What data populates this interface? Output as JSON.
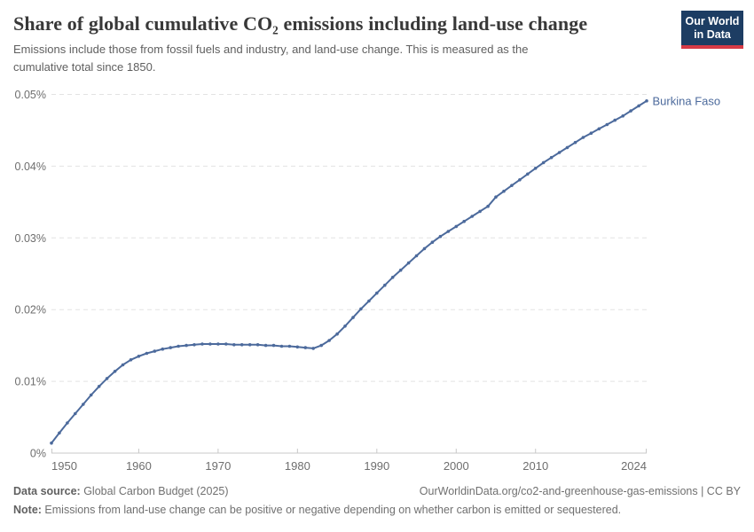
{
  "header": {
    "title": "Share of global cumulative CO₂ emissions including land-use change",
    "subtitle": "Emissions include those from fossil fuels and industry, and land-use change. This is measured as the\ncumulative total since 1850.",
    "logo_line1": "Our World",
    "logo_line2": "in Data"
  },
  "chart_data": {
    "type": "line",
    "title": "Share of global cumulative CO₂ emissions including land-use change",
    "entity_label": "Burkina Faso",
    "xlabel": "",
    "ylabel": "",
    "xlim": [
      1949,
      2024
    ],
    "ylim": [
      0,
      0.05
    ],
    "grid": true,
    "legend_position": "end-of-line",
    "x_ticks": [
      1950,
      1960,
      1970,
      1980,
      1990,
      2000,
      2010,
      2024
    ],
    "y_ticks": [
      0,
      0.01,
      0.02,
      0.03,
      0.04,
      0.05
    ],
    "y_tick_labels": [
      "0%",
      "0.01%",
      "0.02%",
      "0.03%",
      "0.04%",
      "0.05%"
    ],
    "x": [
      1949,
      1950,
      1951,
      1952,
      1953,
      1954,
      1955,
      1956,
      1957,
      1958,
      1959,
      1960,
      1961,
      1962,
      1963,
      1964,
      1965,
      1966,
      1967,
      1968,
      1969,
      1970,
      1971,
      1972,
      1973,
      1974,
      1975,
      1976,
      1977,
      1978,
      1979,
      1980,
      1981,
      1982,
      1983,
      1984,
      1985,
      1986,
      1987,
      1988,
      1989,
      1990,
      1991,
      1992,
      1993,
      1994,
      1995,
      1996,
      1997,
      1998,
      1999,
      2000,
      2001,
      2002,
      2003,
      2004,
      2005,
      2006,
      2007,
      2008,
      2009,
      2010,
      2011,
      2012,
      2013,
      2014,
      2015,
      2016,
      2017,
      2018,
      2019,
      2020,
      2021,
      2022,
      2023,
      2024
    ],
    "series": [
      {
        "name": "Burkina Faso",
        "unit": "%",
        "values": [
          0.0014,
          0.0028,
          0.0042,
          0.0055,
          0.0068,
          0.0081,
          0.0093,
          0.0104,
          0.0114,
          0.0123,
          0.013,
          0.0135,
          0.0139,
          0.0142,
          0.0145,
          0.0147,
          0.0149,
          0.015,
          0.0151,
          0.0152,
          0.0152,
          0.0152,
          0.0152,
          0.0151,
          0.0151,
          0.0151,
          0.0151,
          0.015,
          0.015,
          0.0149,
          0.0149,
          0.0148,
          0.0147,
          0.0146,
          0.015,
          0.0157,
          0.0166,
          0.0177,
          0.0189,
          0.0201,
          0.0212,
          0.0223,
          0.0234,
          0.0245,
          0.0255,
          0.0265,
          0.0275,
          0.0285,
          0.0294,
          0.0302,
          0.0309,
          0.0316,
          0.0323,
          0.033,
          0.0337,
          0.0344,
          0.0357,
          0.0365,
          0.0373,
          0.0381,
          0.0389,
          0.0397,
          0.0405,
          0.0412,
          0.0419,
          0.0426,
          0.0433,
          0.044,
          0.0446,
          0.0452,
          0.0458,
          0.0464,
          0.047,
          0.0477,
          0.0484,
          0.0491
        ]
      }
    ]
  },
  "styles": {
    "line_color": "#4c6a9c",
    "entity_label_color": "#4c6a9c",
    "grid_color": "#e3e3e3",
    "axis_color": "#c8c8c8",
    "tick_label_color": "#6e6e6e",
    "logo_navy": "#1d3d63",
    "logo_red": "#d73a46"
  },
  "footer": {
    "source_label": "Data source:",
    "source_value": " Global Carbon Budget (2025)",
    "link": "OurWorldinData.org/co2-and-greenhouse-gas-emissions | CC BY",
    "note_label": "Note:",
    "note_text": " Emissions from land-use change can be positive or negative depending on whether carbon is emitted or sequestered."
  }
}
